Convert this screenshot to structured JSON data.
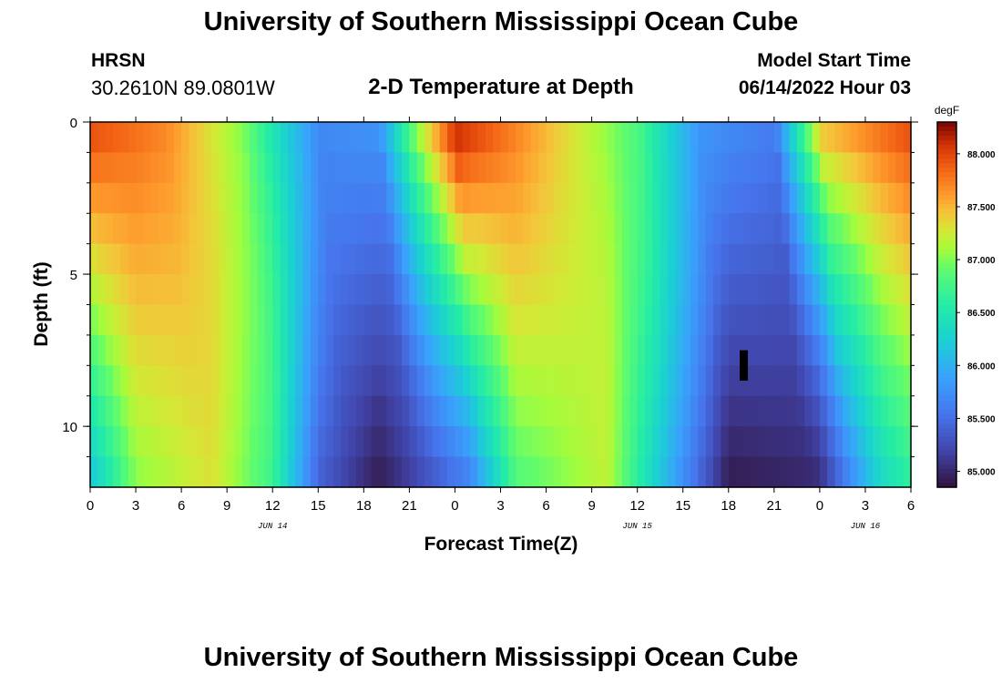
{
  "header": {
    "title": "University of Southern Mississippi Ocean Cube",
    "station": "HRSN",
    "coords": "30.2610N  89.0801W",
    "subtitle": "2-D Temperature at Depth",
    "model_start_label": "Model Start Time",
    "model_start_value": "06/14/2022 Hour 03"
  },
  "footer": {
    "title": "University of Southern Mississippi Ocean Cube"
  },
  "chart_data": {
    "type": "heatmap",
    "title": "2-D Temperature at Depth",
    "xlabel": "Forecast Time(Z)",
    "ylabel": "Depth (ft)",
    "x_range_hours": [
      0,
      54
    ],
    "x_ticks": [
      "0",
      "3",
      "6",
      "9",
      "12",
      "15",
      "18",
      "21",
      "0",
      "3",
      "6",
      "9",
      "12",
      "15",
      "18",
      "21",
      "0",
      "3",
      "6"
    ],
    "date_labels": [
      {
        "label": "JUN 14",
        "hour": 12
      },
      {
        "label": "JUN 15",
        "hour": 36
      },
      {
        "label": "JUN 16",
        "hour": 51
      }
    ],
    "y_range_ft": [
      0,
      12
    ],
    "y_ticks": [
      0,
      5,
      10
    ],
    "depth_levels_ft": [
      0.5,
      1.5,
      2.5,
      3.5,
      4.5,
      5.5,
      6.5,
      7.5,
      8.5,
      9.5,
      10.5,
      11.5
    ],
    "colorbar": {
      "unit": "degF",
      "min": 84.85,
      "max": 88.3,
      "ticks": [
        "85.000",
        "85.500",
        "86.000",
        "86.500",
        "87.000",
        "87.500",
        "88.000"
      ]
    },
    "surface_temp_by_hour_degF": [
      {
        "hour": 0,
        "value": 88.0
      },
      {
        "hour": 5,
        "value": 87.7
      },
      {
        "hour": 10,
        "value": 87.0
      },
      {
        "hour": 13,
        "value": 86.2
      },
      {
        "hour": 15,
        "value": 85.7
      },
      {
        "hour": 19,
        "value": 85.8
      },
      {
        "hour": 21,
        "value": 86.9
      },
      {
        "hour": 24,
        "value": 88.2
      },
      {
        "hour": 30,
        "value": 87.5
      },
      {
        "hour": 36,
        "value": 86.8
      },
      {
        "hour": 40,
        "value": 85.8
      },
      {
        "hour": 45,
        "value": 85.6
      },
      {
        "hour": 48,
        "value": 87.5
      },
      {
        "hour": 54,
        "value": 88.0
      }
    ],
    "deep_temp_by_hour_degF": [
      {
        "hour": 0,
        "value": 86.1
      },
      {
        "hour": 3,
        "value": 87.0
      },
      {
        "hour": 8,
        "value": 87.3
      },
      {
        "hour": 12,
        "value": 86.7
      },
      {
        "hour": 15,
        "value": 85.4
      },
      {
        "hour": 19,
        "value": 84.9
      },
      {
        "hour": 25,
        "value": 85.6
      },
      {
        "hour": 28,
        "value": 86.8
      },
      {
        "hour": 34,
        "value": 87.2
      },
      {
        "hour": 38,
        "value": 86.0
      },
      {
        "hour": 42,
        "value": 84.9
      },
      {
        "hour": 48,
        "value": 85.0
      },
      {
        "hour": 52,
        "value": 86.3
      },
      {
        "hour": 54,
        "value": 86.6
      }
    ],
    "missing_cell": {
      "hour": 43,
      "depth_ft": 8.0
    }
  }
}
